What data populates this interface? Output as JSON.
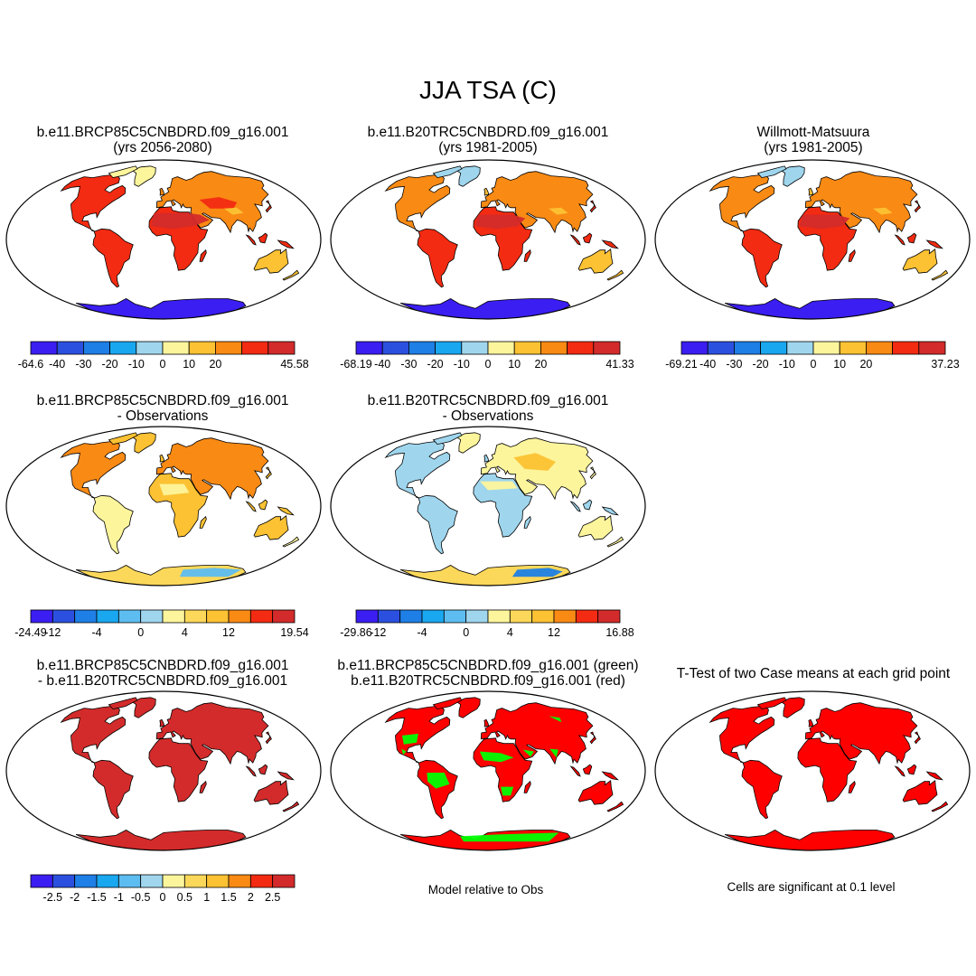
{
  "title": "JJA TSA (C)",
  "panels": [
    {
      "id": "p1",
      "title1": "b.e11.BRCP85C5CNBDRD.f09_g16.001",
      "title2": "(yrs 2056-2080)",
      "fill": "abs_future"
    },
    {
      "id": "p2",
      "title1": "b.e11.B20TRC5CNBDRD.f09_g16.001",
      "title2": "(yrs 1981-2005)",
      "fill": "abs_hist"
    },
    {
      "id": "p3",
      "title1": "Willmott-Matsuura",
      "title2": "(yrs 1981-2005)",
      "fill": "abs_obs"
    },
    {
      "id": "p4",
      "title1": "b.e11.BRCP85C5CNBDRD.f09_g16.001",
      "title2": "- Observations",
      "fill": "diff_warm"
    },
    {
      "id": "p5",
      "title1": "b.e11.B20TRC5CNBDRD.f09_g16.001",
      "title2": "- Observations",
      "fill": "diff_mixed"
    },
    {
      "id": "p6",
      "title1": "b.e11.BRCP85C5CNBDRD.f09_g16.001",
      "title2": "- b.e11.B20TRC5CNBDRD.f09_g16.001",
      "fill": "case_diff"
    },
    {
      "id": "p7",
      "title1": "b.e11.BRCP85C5CNBDRD.f09_g16.001 (green)",
      "title2": "b.e11.B20TRC5CNBDRD.f09_g16.001 (red)",
      "fill": "model_vs_obs"
    },
    {
      "id": "p8",
      "title1": "T-Test of two Case means at each grid point",
      "title2": "",
      "fill": "ttest"
    }
  ],
  "colorbars": [
    {
      "id": "cb1",
      "min": "-64.6",
      "max": "45.58",
      "ticks": [
        "-40",
        "-30",
        "-20",
        "-10",
        "0",
        "10",
        "20"
      ]
    },
    {
      "id": "cb2",
      "min": "-68.19",
      "max": "41.33",
      "ticks": [
        "-40",
        "-30",
        "-20",
        "-10",
        "0",
        "10",
        "20"
      ]
    },
    {
      "id": "cb3",
      "min": "-69.21",
      "max": "37.23",
      "ticks": [
        "-40",
        "-30",
        "-20",
        "-10",
        "0",
        "10",
        "20"
      ]
    },
    {
      "id": "cb4",
      "min": "-24.49",
      "max": "19.54",
      "ticks": [
        "-12",
        "",
        "-4",
        "",
        "0",
        "",
        "4",
        "",
        "12"
      ]
    },
    {
      "id": "cb5",
      "min": "-29.86",
      "max": "16.88",
      "ticks": [
        "-12",
        "",
        "-4",
        "",
        "0",
        "",
        "4",
        "",
        "12"
      ]
    },
    {
      "id": "cb6",
      "min": "",
      "max": "",
      "ticks": [
        "-2.5",
        "-2",
        "-1.5",
        "-1",
        "-0.5",
        "0",
        "0.5",
        "1",
        "1.5",
        "2",
        "2.5"
      ]
    }
  ],
  "palettes": {
    "abs": [
      "#3b1ef2",
      "#2b50e0",
      "#1e7fe6",
      "#19a7f0",
      "#9fd6ee",
      "#fdf59c",
      "#fcc233",
      "#f98a14",
      "#f32b12",
      "#d32b2b"
    ],
    "diff": [
      "#3b1ef2",
      "#2b50e0",
      "#1e7fe6",
      "#19a7f0",
      "#5dbdf1",
      "#9fd6ee",
      "#fdf59c",
      "#fcd85a",
      "#fcc233",
      "#f98a14",
      "#f32b12",
      "#d32b2b"
    ],
    "signif": "#ff0000",
    "green": "#00ff00",
    "border": "#000000"
  },
  "notes": {
    "model_vs_obs": "Model relative to Obs",
    "signif": "Cells are significant at 0.1 level"
  }
}
